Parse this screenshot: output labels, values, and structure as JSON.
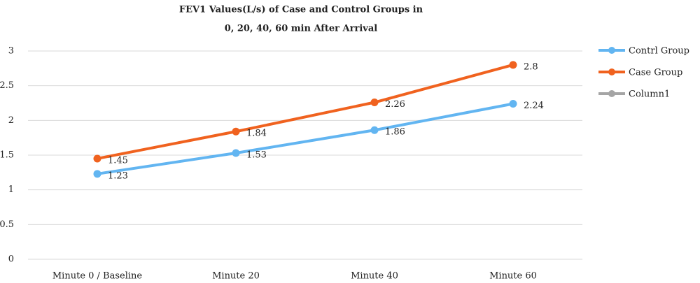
{
  "chart_data": {
    "type": "line",
    "title": [
      "FEV1 Values(L/s) of Case and Control Groups in",
      "0, 20, 40, 60 min After Arrival"
    ],
    "categories": [
      "Minute 0 / Baseline",
      "Minute 20",
      "Minute 40",
      "Minute 60"
    ],
    "series": [
      {
        "name": "Contrl Group",
        "color": "#62b5f1",
        "values": [
          1.23,
          1.53,
          1.86,
          2.24
        ]
      },
      {
        "name": "Case Group",
        "color": "#f0621f",
        "values": [
          1.45,
          1.84,
          2.26,
          2.8
        ]
      },
      {
        "name": "Column1",
        "color": "#a5a5a5",
        "values": [
          null,
          null,
          null,
          null
        ]
      }
    ],
    "ylim": [
      0,
      3
    ],
    "yticks": [
      0,
      0.5,
      1,
      1.5,
      2,
      2.5,
      3
    ],
    "grid": true,
    "legend": "right"
  }
}
